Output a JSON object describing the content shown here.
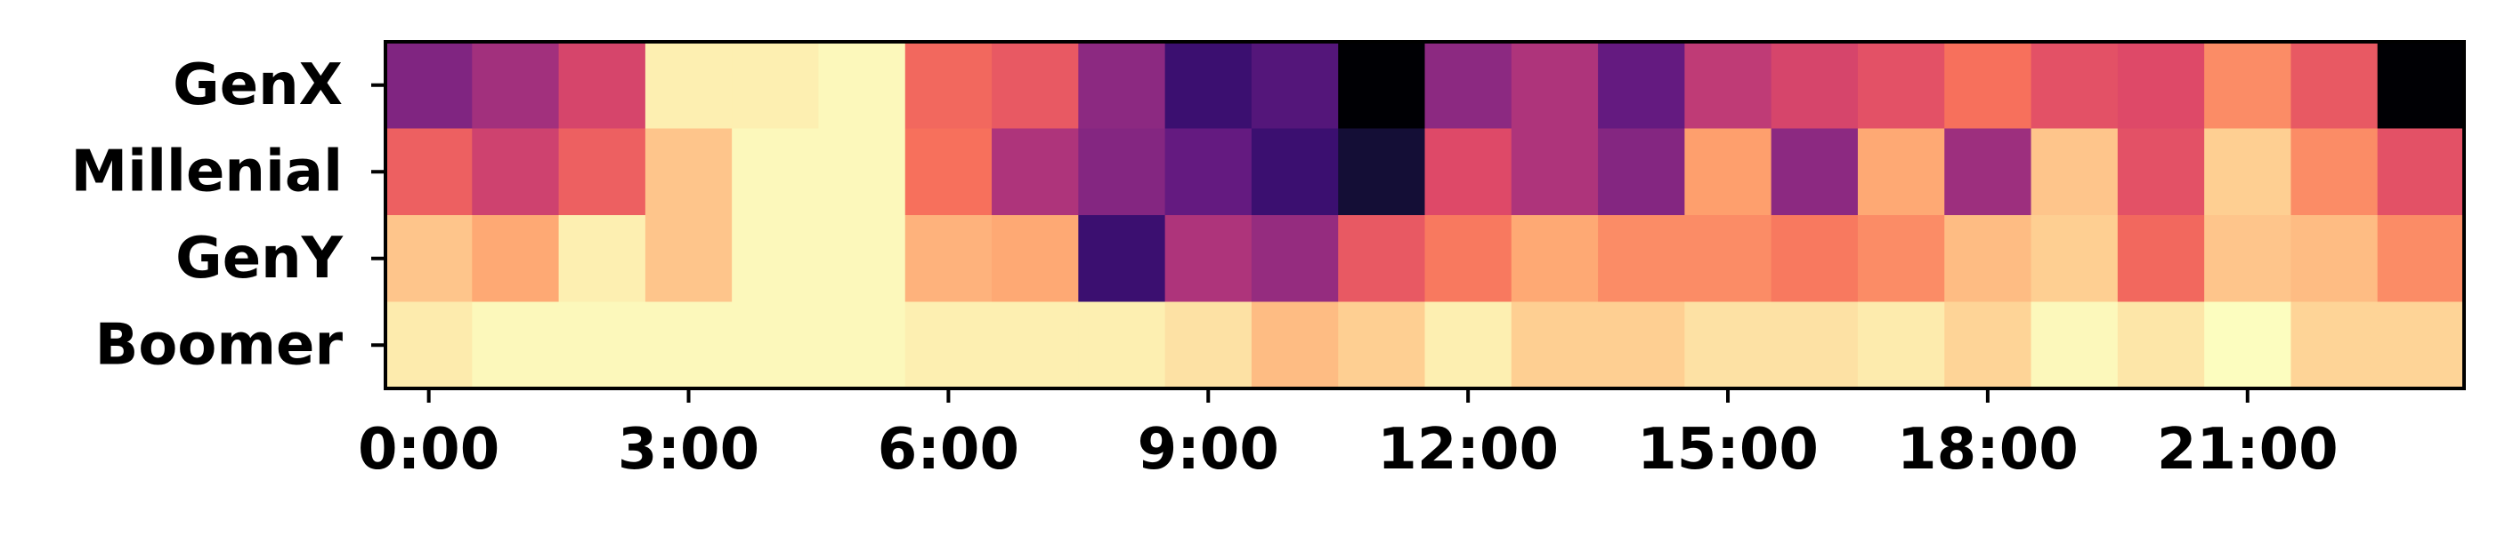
{
  "chart_data": {
    "type": "heatmap",
    "colormap": "magma",
    "rows": [
      "GenX",
      "Millenial",
      "GenY",
      "Boomer"
    ],
    "x_tick_labels": [
      "0:00",
      "3:00",
      "6:00",
      "9:00",
      "12:00",
      "15:00",
      "18:00",
      "21:00"
    ],
    "x_tick_hours": [
      0,
      3,
      6,
      9,
      12,
      15,
      18,
      21
    ],
    "hours": [
      0,
      1,
      2,
      3,
      4,
      5,
      6,
      7,
      8,
      9,
      10,
      11,
      12,
      13,
      14,
      15,
      16,
      17,
      18,
      19,
      20,
      21,
      22,
      23
    ],
    "value_scale": "normalized 0 (dark) to 1 (light)",
    "values": [
      [
        0.37,
        0.45,
        0.58,
        0.97,
        0.97,
        0.99,
        0.68,
        0.64,
        0.4,
        0.2,
        0.26,
        0.0,
        0.4,
        0.48,
        0.3,
        0.52,
        0.58,
        0.62,
        0.7,
        0.62,
        0.6,
        0.76,
        0.64,
        0.0
      ],
      [
        0.66,
        0.56,
        0.66,
        0.88,
        0.99,
        0.99,
        0.7,
        0.48,
        0.38,
        0.3,
        0.2,
        0.1,
        0.6,
        0.48,
        0.38,
        0.8,
        0.4,
        0.82,
        0.44,
        0.88,
        0.62,
        0.9,
        0.76,
        0.62
      ],
      [
        0.88,
        0.82,
        0.97,
        0.88,
        0.99,
        0.99,
        0.84,
        0.82,
        0.2,
        0.48,
        0.42,
        0.64,
        0.72,
        0.82,
        0.76,
        0.76,
        0.72,
        0.76,
        0.86,
        0.9,
        0.68,
        0.88,
        0.86,
        0.76
      ],
      [
        0.96,
        0.99,
        0.99,
        0.99,
        0.99,
        0.99,
        0.97,
        0.97,
        0.97,
        0.94,
        0.86,
        0.9,
        0.97,
        0.9,
        0.9,
        0.94,
        0.94,
        0.96,
        0.91,
        0.99,
        0.95,
        1.0,
        0.91,
        0.91
      ]
    ]
  }
}
